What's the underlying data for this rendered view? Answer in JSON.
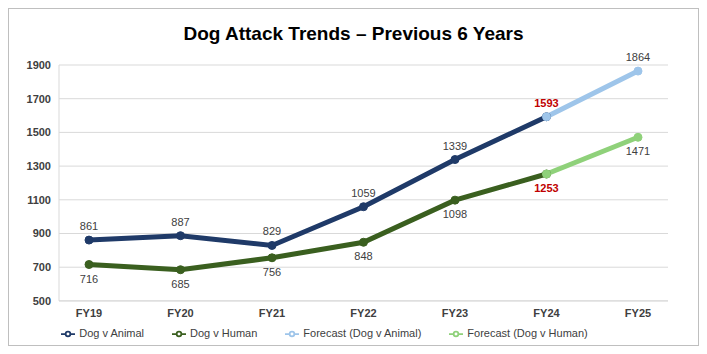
{
  "chart_data": {
    "type": "line",
    "title": "Dog Attack Trends – Previous 6 Years",
    "categories": [
      "FY19",
      "FY20",
      "FY21",
      "FY22",
      "FY23",
      "FY24",
      "FY25"
    ],
    "series": [
      {
        "name": "Dog v Human",
        "color": "#3a5f1f",
        "marker": "circle",
        "values": [
          716,
          685,
          756,
          848,
          1098,
          1253,
          null
        ]
      },
      {
        "name": "Forecast (Dog v Human)",
        "color": "#8fd17a",
        "marker": "circle",
        "values": [
          null,
          null,
          null,
          null,
          null,
          1253,
          1471
        ],
        "value_labels": [
          null,
          null,
          null,
          null,
          null,
          null,
          "1471"
        ]
      },
      {
        "name": "Dog v Animal",
        "color": "#1f3a68",
        "marker": "circle",
        "values": [
          861,
          887,
          829,
          1059,
          1339,
          1593,
          null
        ]
      },
      {
        "name": "Forecast (Dog v Animal)",
        "color": "#9ec5ea",
        "marker": "circle",
        "values": [
          null,
          null,
          null,
          null,
          null,
          1593,
          1864
        ],
        "value_labels": [
          null,
          null,
          null,
          null,
          null,
          null,
          "1864"
        ]
      }
    ],
    "ylim": [
      500,
      1900
    ],
    "yticks": [
      500,
      700,
      900,
      1100,
      1300,
      1500,
      1700,
      1900
    ],
    "grid": true,
    "legend": "bottom",
    "data_labels": true
  }
}
